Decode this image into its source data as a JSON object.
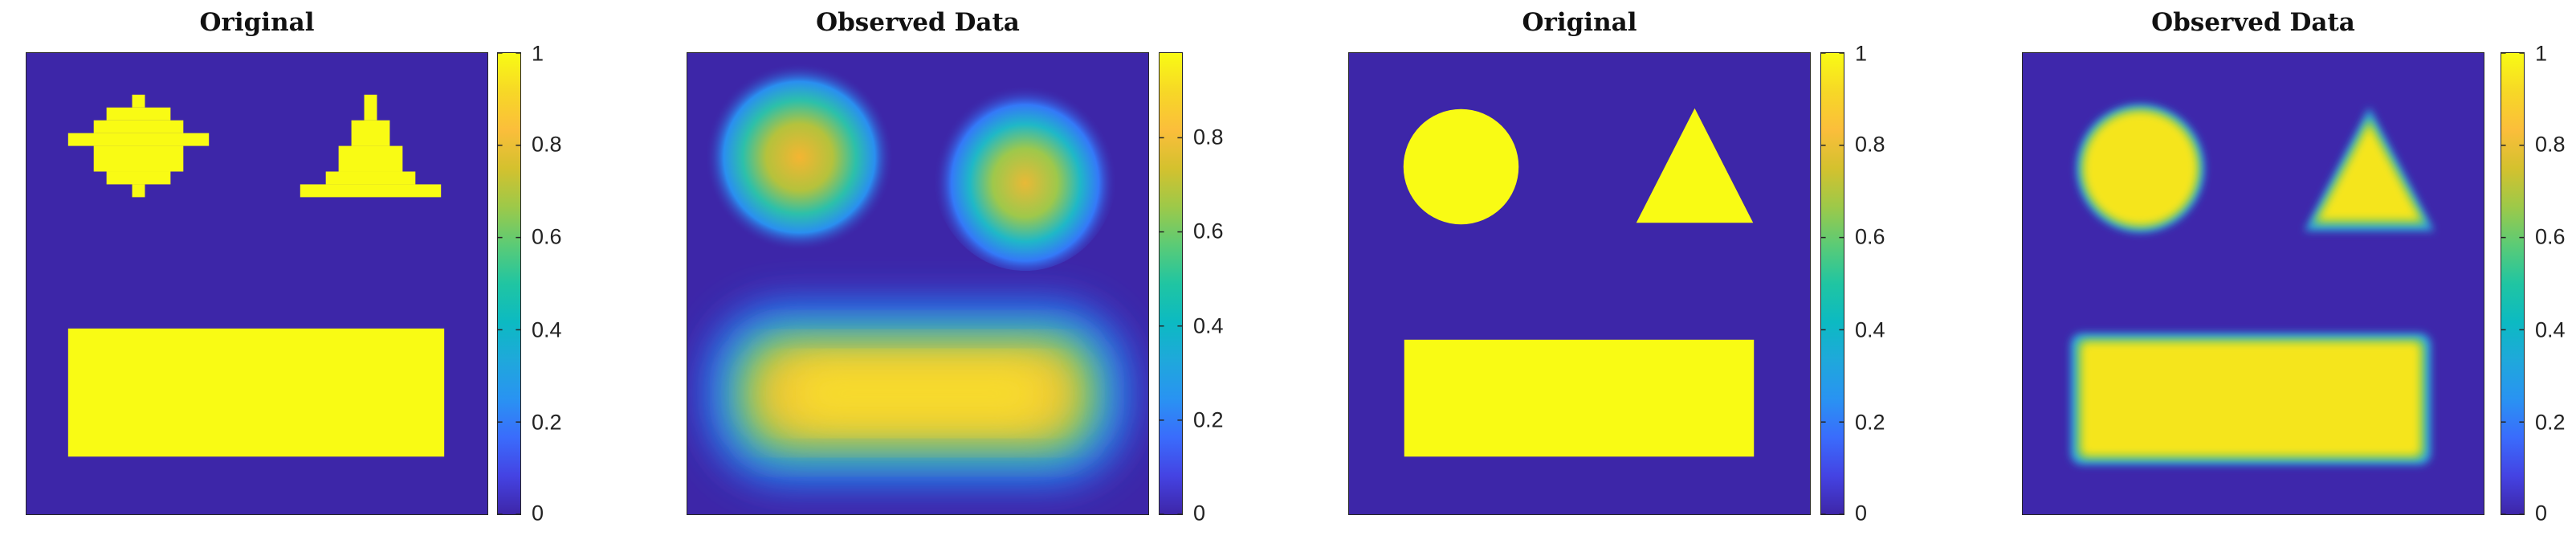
{
  "colormap": [
    "#3e26a8",
    "#4443e3",
    "#3a6cfc",
    "#2993f2",
    "#1fa8db",
    "#0cbac2",
    "#20c5a2",
    "#5bcb76",
    "#9dc949",
    "#d4c12e",
    "#fbbe3b",
    "#f7d826",
    "#f9fb14"
  ],
  "chart_data": [
    {
      "type": "heatmap",
      "title": "Original",
      "resolution": "coarse",
      "clim": [
        0,
        1
      ],
      "colorbar_ticks": [
        "0",
        "0.2",
        "0.4",
        "0.6",
        "0.8",
        "1"
      ],
      "colorbar_tick_values": [
        0,
        0.2,
        0.4,
        0.6,
        0.8,
        1
      ],
      "shapes": [
        "disk",
        "triangle",
        "rectangle"
      ],
      "shape_value": 1,
      "background_value": 0
    },
    {
      "type": "heatmap",
      "title": "Observed Data",
      "resolution": "coarse",
      "clim": [
        0,
        0.98
      ],
      "colorbar_ticks": [
        "0",
        "0.2",
        "0.4",
        "0.6",
        "0.8"
      ],
      "colorbar_tick_values": [
        0,
        0.2,
        0.4,
        0.6,
        0.8
      ],
      "shapes": [
        "disk",
        "triangle",
        "rectangle"
      ],
      "peak_values": [
        0.88,
        0.85,
        0.92
      ],
      "background_value": 0
    },
    {
      "type": "heatmap",
      "title": "Original",
      "resolution": "fine",
      "clim": [
        0,
        1
      ],
      "colorbar_ticks": [
        "0",
        "0.2",
        "0.4",
        "0.6",
        "0.8",
        "1"
      ],
      "colorbar_tick_values": [
        0,
        0.2,
        0.4,
        0.6,
        0.8,
        1
      ],
      "shapes": [
        "disk",
        "triangle",
        "rectangle"
      ],
      "shape_value": 1,
      "background_value": 0
    },
    {
      "type": "heatmap",
      "title": "Observed Data",
      "resolution": "fine",
      "clim": [
        0,
        1
      ],
      "colorbar_ticks": [
        "0",
        "0.2",
        "0.4",
        "0.6",
        "0.8",
        "1"
      ],
      "colorbar_tick_values": [
        0,
        0.2,
        0.4,
        0.6,
        0.8,
        1
      ],
      "shapes": [
        "disk",
        "triangle",
        "rectangle"
      ],
      "peak_values": [
        0.98,
        0.98,
        0.98
      ],
      "background_value": 0.02
    }
  ]
}
